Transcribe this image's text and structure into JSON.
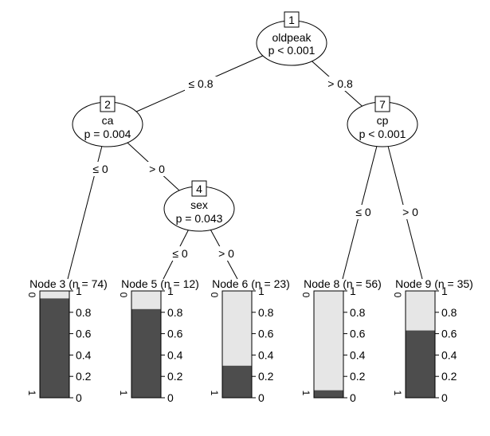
{
  "inner_nodes": [
    {
      "id": "1",
      "variable": "oldpeak",
      "p": "p < 0.001"
    },
    {
      "id": "2",
      "variable": "ca",
      "p": "p = 0.004"
    },
    {
      "id": "4",
      "variable": "sex",
      "p": "p = 0.043"
    },
    {
      "id": "7",
      "variable": "cp",
      "p": "p < 0.001"
    }
  ],
  "edges": [
    {
      "from": "1",
      "to": "2",
      "label": "≤ 0.8"
    },
    {
      "from": "1",
      "to": "7",
      "label": "> 0.8"
    },
    {
      "from": "2",
      "to": "3",
      "label": "≤ 0"
    },
    {
      "from": "2",
      "to": "4",
      "label": "> 0"
    },
    {
      "from": "4",
      "to": "5",
      "label": "≤ 0"
    },
    {
      "from": "4",
      "to": "6",
      "label": "> 0"
    },
    {
      "from": "7",
      "to": "8",
      "label": "≤ 0"
    },
    {
      "from": "7",
      "to": "9",
      "label": "> 0"
    }
  ],
  "terminal_nodes": [
    {
      "id": "3",
      "title": "Node 3 (n = 74)",
      "proportion_1": 0.93
    },
    {
      "id": "5",
      "title": "Node 5 (n = 12)",
      "proportion_1": 0.83
    },
    {
      "id": "6",
      "title": "Node 6 (n = 23)",
      "proportion_1": 0.3
    },
    {
      "id": "8",
      "title": "Node 8 (n = 56)",
      "proportion_1": 0.07
    },
    {
      "id": "9",
      "title": "Node 9 (n = 35)",
      "proportion_1": 0.63
    }
  ],
  "bar_axis": {
    "ticks": [
      "0",
      "0.2",
      "0.4",
      "0.6",
      "0.8",
      "1"
    ],
    "class_top": "0",
    "class_bottom": "1"
  },
  "colors": {
    "class_1": "#4d4d4d",
    "class_0": "#e6e6e6"
  }
}
